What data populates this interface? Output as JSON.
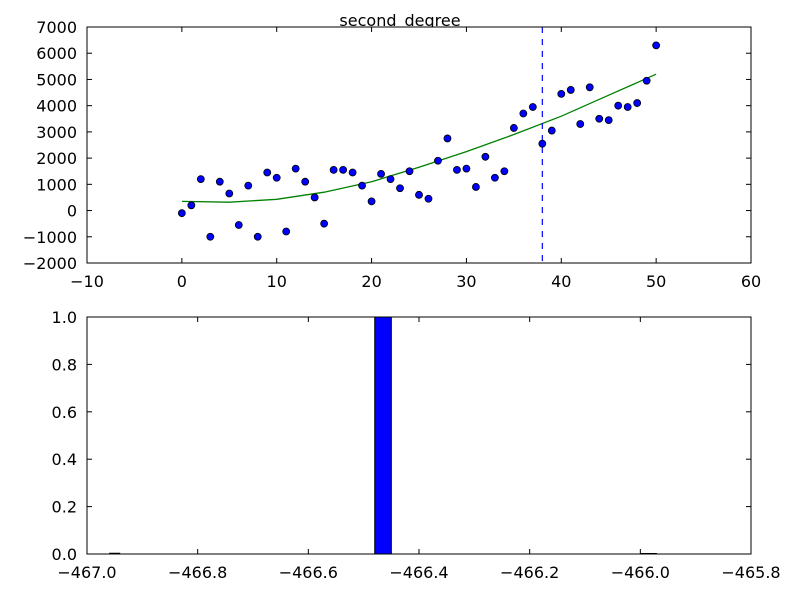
{
  "figure": {
    "title": "second_degree"
  },
  "chart_data": [
    {
      "type": "scatter",
      "title": "second_degree",
      "xlim": [
        -10,
        60
      ],
      "ylim": [
        -2000,
        7000
      ],
      "xticks": [
        -10,
        0,
        10,
        20,
        30,
        40,
        50,
        60
      ],
      "yticks": [
        -2000,
        -1000,
        0,
        1000,
        2000,
        3000,
        4000,
        5000,
        6000,
        7000
      ],
      "xtick_labels": [
        "−10",
        "0",
        "10",
        "20",
        "30",
        "40",
        "50",
        "60"
      ],
      "ytick_labels": [
        "−2000",
        "−1000",
        "0",
        "1000",
        "2000",
        "3000",
        "4000",
        "5000",
        "6000",
        "7000"
      ],
      "grid": false,
      "points": {
        "x": [
          0,
          1,
          2,
          3,
          4,
          5,
          6,
          7,
          8,
          9,
          10,
          11,
          12,
          13,
          14,
          15,
          16,
          17,
          18,
          19,
          20,
          21,
          22,
          23,
          24,
          25,
          26,
          27,
          28,
          29,
          30,
          31,
          32,
          33,
          34,
          35,
          36,
          37,
          38,
          39,
          40,
          41,
          42,
          43,
          44,
          45,
          46,
          47,
          48,
          49,
          50
        ],
        "y": [
          -100,
          200,
          1200,
          -1000,
          1100,
          650,
          -550,
          950,
          -1000,
          1450,
          1250,
          -800,
          1600,
          1100,
          500,
          -500,
          1550,
          1550,
          1450,
          950,
          350,
          1400,
          1200,
          850,
          1500,
          600,
          450,
          1900,
          2750,
          1550,
          1600,
          900,
          2050,
          1250,
          1500,
          3150,
          3700,
          3950,
          2550,
          3050,
          4450,
          4600,
          3300,
          4700,
          3500,
          3450,
          4000,
          3950,
          4100,
          4950,
          6300
        ],
        "color": "#0000ff"
      },
      "fit_line": {
        "x": [
          0,
          5,
          10,
          15,
          20,
          25,
          30,
          35,
          40,
          45,
          50
        ],
        "y": [
          350,
          320,
          430,
          700,
          1100,
          1650,
          2250,
          2900,
          3600,
          4400,
          5200
        ],
        "color": "#008000"
      },
      "vline": {
        "x": 38,
        "color": "#0000ff",
        "style": "dashed"
      }
    },
    {
      "type": "bar",
      "xlim": [
        -467.0,
        -465.8
      ],
      "ylim": [
        0,
        1.0
      ],
      "xticks": [
        -467.0,
        -466.8,
        -466.6,
        -466.4,
        -466.2,
        -466.0,
        -465.8
      ],
      "yticks": [
        0.0,
        0.2,
        0.4,
        0.6,
        0.8,
        1.0
      ],
      "xtick_labels": [
        "−467.0",
        "−466.8",
        "−466.6",
        "−466.4",
        "−466.2",
        "−466.0",
        "−465.8"
      ],
      "ytick_labels": [
        "0.0",
        "0.2",
        "0.4",
        "0.6",
        "0.8",
        "1.0"
      ],
      "grid": false,
      "bars": [
        {
          "x_start": -466.48,
          "x_end": -466.45,
          "value": 1.0
        }
      ],
      "color": "#0000ff"
    }
  ]
}
